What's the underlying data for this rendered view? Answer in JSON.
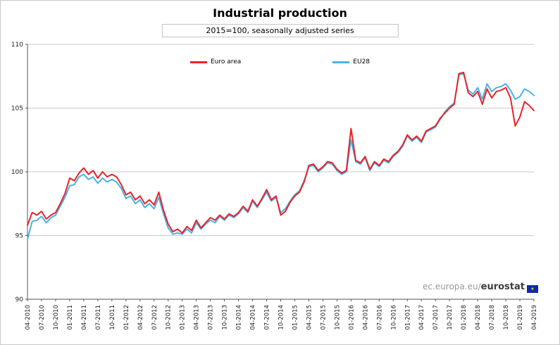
{
  "watermark": {
    "prefix": "ec.europa.eu/",
    "brand": "eurostat",
    "flag_icon": "eu-flag-icon"
  },
  "chart_data": {
    "type": "line",
    "title": "Industrial production",
    "subtitle": "2015=100, seasonally adjusted series",
    "xlabel": "",
    "ylabel": "",
    "ylim": [
      90,
      110
    ],
    "yticks": [
      90,
      95,
      100,
      105,
      110
    ],
    "grid": "horizontal",
    "legend_position": "top-inside",
    "x_tick_step": 3,
    "x": [
      "04-2010",
      "05-2010",
      "06-2010",
      "07-2010",
      "08-2010",
      "09-2010",
      "10-2010",
      "11-2010",
      "12-2010",
      "01-2011",
      "02-2011",
      "03-2011",
      "04-2011",
      "05-2011",
      "06-2011",
      "07-2011",
      "08-2011",
      "09-2011",
      "10-2011",
      "11-2011",
      "12-2011",
      "01-2012",
      "02-2012",
      "03-2012",
      "04-2012",
      "05-2012",
      "06-2012",
      "07-2012",
      "08-2012",
      "09-2012",
      "10-2012",
      "11-2012",
      "12-2012",
      "01-2013",
      "02-2013",
      "03-2013",
      "04-2013",
      "05-2013",
      "06-2013",
      "07-2013",
      "08-2013",
      "09-2013",
      "10-2013",
      "11-2013",
      "12-2013",
      "01-2014",
      "02-2014",
      "03-2014",
      "04-2014",
      "05-2014",
      "06-2014",
      "07-2014",
      "08-2014",
      "09-2014",
      "10-2014",
      "11-2014",
      "12-2014",
      "01-2015",
      "02-2015",
      "03-2015",
      "04-2015",
      "05-2015",
      "06-2015",
      "07-2015",
      "08-2015",
      "09-2015",
      "10-2015",
      "11-2015",
      "12-2015",
      "01-2016",
      "02-2016",
      "03-2016",
      "04-2016",
      "05-2016",
      "06-2016",
      "07-2016",
      "08-2016",
      "09-2016",
      "10-2016",
      "11-2016",
      "12-2016",
      "01-2017",
      "02-2017",
      "03-2017",
      "04-2017",
      "05-2017",
      "06-2017",
      "07-2017",
      "08-2017",
      "09-2017",
      "10-2017",
      "11-2017",
      "12-2017",
      "01-2018",
      "02-2018",
      "03-2018",
      "04-2018",
      "05-2018",
      "06-2018",
      "07-2018",
      "08-2018",
      "09-2018",
      "10-2018",
      "11-2018",
      "12-2018",
      "01-2019",
      "02-2019",
      "03-2019",
      "04-2019"
    ],
    "series": [
      {
        "name": "Euro area",
        "color": "#e8232a",
        "values": [
          95.8,
          96.8,
          96.6,
          96.9,
          96.3,
          96.6,
          96.8,
          97.5,
          98.3,
          99.5,
          99.3,
          99.9,
          100.3,
          99.8,
          100.1,
          99.5,
          100.0,
          99.6,
          99.8,
          99.6,
          99.0,
          98.2,
          98.4,
          97.8,
          98.1,
          97.5,
          97.8,
          97.4,
          98.4,
          97.0,
          95.9,
          95.3,
          95.5,
          95.2,
          95.7,
          95.4,
          96.2,
          95.6,
          96.0,
          96.4,
          96.2,
          96.6,
          96.3,
          96.7,
          96.5,
          96.8,
          97.3,
          96.9,
          97.8,
          97.3,
          97.9,
          98.6,
          97.8,
          98.1,
          96.6,
          96.9,
          97.6,
          98.1,
          98.4,
          99.2,
          100.5,
          100.6,
          100.1,
          100.4,
          100.8,
          100.7,
          100.2,
          99.9,
          100.1,
          103.4,
          100.9,
          100.7,
          101.2,
          100.2,
          100.8,
          100.5,
          101.0,
          100.8,
          101.3,
          101.6,
          102.1,
          102.9,
          102.5,
          102.8,
          102.4,
          103.2,
          103.4,
          103.6,
          104.2,
          104.6,
          105.0,
          105.3,
          107.7,
          107.8,
          106.2,
          105.9,
          106.3,
          105.3,
          106.5,
          105.8,
          106.3,
          106.4,
          106.6,
          105.8,
          103.6,
          104.3,
          105.5,
          105.2,
          104.8
        ]
      },
      {
        "name": "EU28",
        "color": "#45b5e6",
        "values": [
          94.7,
          96.1,
          96.2,
          96.5,
          96.0,
          96.4,
          96.6,
          97.3,
          98.0,
          98.9,
          99.0,
          99.6,
          99.8,
          99.4,
          99.6,
          99.1,
          99.5,
          99.2,
          99.4,
          99.2,
          98.7,
          97.9,
          98.1,
          97.5,
          97.8,
          97.2,
          97.5,
          97.1,
          98.0,
          96.7,
          95.6,
          95.1,
          95.2,
          95.1,
          95.5,
          95.2,
          96.0,
          95.5,
          95.9,
          96.2,
          96.0,
          96.5,
          96.2,
          96.6,
          96.4,
          96.7,
          97.2,
          96.8,
          97.7,
          97.2,
          97.8,
          98.4,
          97.7,
          98.0,
          96.8,
          97.1,
          97.7,
          98.2,
          98.5,
          99.3,
          100.4,
          100.5,
          100.0,
          100.3,
          100.7,
          100.6,
          100.1,
          99.8,
          100.0,
          102.5,
          100.8,
          100.6,
          101.1,
          100.1,
          100.7,
          100.4,
          100.9,
          100.7,
          101.2,
          101.5,
          102.0,
          102.8,
          102.4,
          102.7,
          102.3,
          103.1,
          103.3,
          103.5,
          104.1,
          104.7,
          105.1,
          105.4,
          107.6,
          107.7,
          106.4,
          106.1,
          106.6,
          105.7,
          106.9,
          106.3,
          106.6,
          106.7,
          106.9,
          106.4,
          105.7,
          105.9,
          106.5,
          106.3,
          106.0
        ]
      }
    ]
  }
}
